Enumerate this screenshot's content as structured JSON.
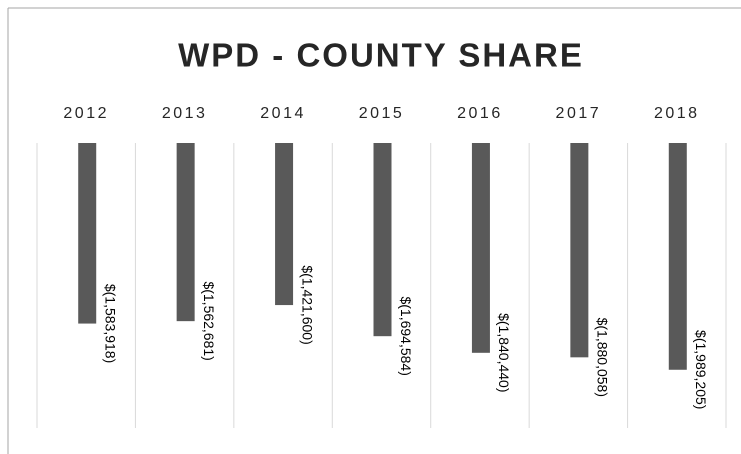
{
  "chart_data": {
    "type": "bar",
    "title": "WPD - COUNTY SHARE",
    "categories": [
      "2012",
      "2013",
      "2014",
      "2015",
      "2016",
      "2017",
      "2018"
    ],
    "values": [
      -1583918,
      -1562681,
      -1421600,
      -1694584,
      -1840440,
      -1880058,
      -1989205
    ],
    "value_labels": [
      "$(1,583,918)",
      "$(1,562,681)",
      "$(1,421,600)",
      "$(1,694,584)",
      "$(1,840,440)",
      "$(1,880,058)",
      "$(1,989,205)"
    ],
    "color": "#595959",
    "ylim": [
      -2500000,
      0
    ]
  }
}
